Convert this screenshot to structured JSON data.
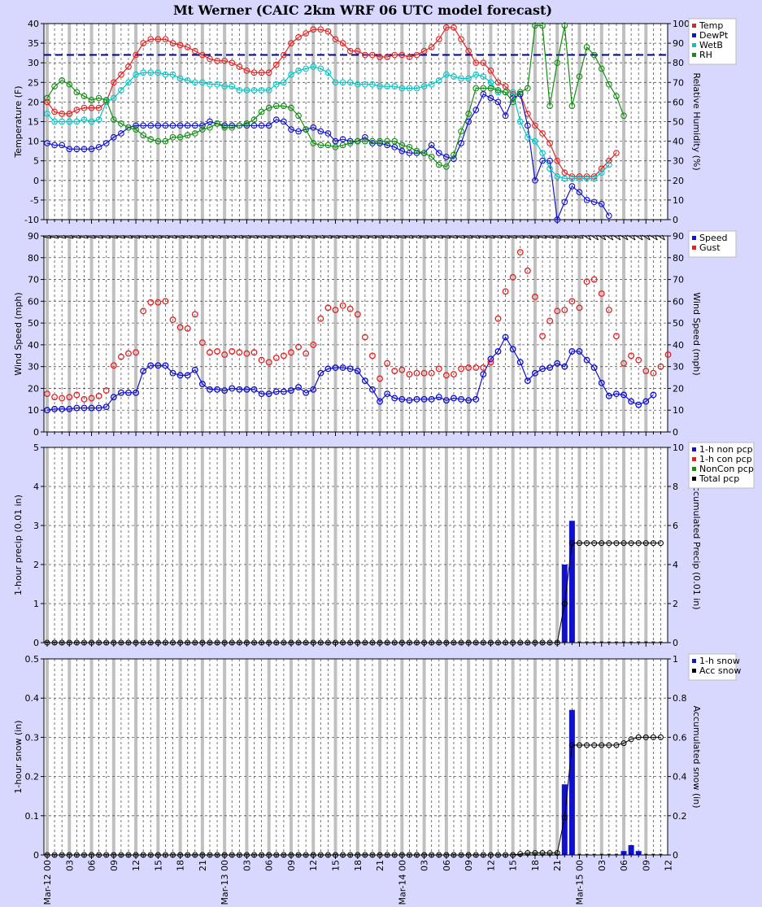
{
  "title": "Mt Werner (CAIC 2km WRF 06 UTC model forecast)",
  "colors": {
    "temp": "#e62020",
    "dewpt": "#1010d0",
    "wetb": "#00c8c8",
    "rh": "#109010",
    "total": "#000000",
    "bg": "#d8d8ff"
  },
  "chart_data": [
    {
      "type": "line",
      "ylabel": "Temperature (F)",
      "y2label": "Relative Humidity (%)",
      "ylim": [
        -10,
        40
      ],
      "y2lim": [
        0,
        100
      ],
      "ref_line": 32,
      "series": [
        {
          "name": "Temp",
          "axis": "left",
          "values": [
            20,
            17.5,
            17,
            17,
            18,
            18.5,
            18.5,
            18.5,
            20,
            25,
            27,
            29,
            32,
            35,
            36,
            36,
            36,
            35,
            34.5,
            34,
            33,
            32,
            31,
            30.5,
            30.5,
            30,
            29,
            28,
            27.5,
            27.5,
            27.5,
            29.5,
            32,
            35,
            36.5,
            37.5,
            38.5,
            38.5,
            38,
            36,
            35,
            33,
            33,
            32,
            32,
            31.5,
            31.5,
            32,
            32,
            31.5,
            32,
            33,
            34,
            36,
            39,
            39,
            36,
            33,
            30,
            30,
            28,
            25,
            24,
            22,
            22,
            17,
            14,
            12,
            9.5,
            5,
            2,
            1,
            1,
            1,
            1,
            3,
            5,
            7
          ]
        },
        {
          "name": "DewPt",
          "axis": "left",
          "values": [
            9.5,
            9,
            9,
            8,
            8,
            8,
            8,
            8.5,
            9.5,
            11,
            12,
            13.5,
            14,
            14,
            14,
            14,
            14,
            14,
            14,
            14,
            14,
            14,
            15,
            14.5,
            14,
            14,
            14,
            14,
            14,
            14,
            14,
            15.5,
            15,
            13,
            12.5,
            13,
            13.5,
            12.5,
            12,
            10,
            10.5,
            10,
            10,
            11,
            9.5,
            9.5,
            9,
            8.5,
            7.5,
            7,
            7,
            7,
            9,
            7,
            6,
            5.5,
            9.5,
            15,
            18,
            22,
            21,
            20,
            16.5,
            21,
            22,
            14,
            0,
            5,
            5,
            -10,
            -5.5,
            -1.5,
            -3,
            -5,
            -5.5,
            -6,
            -9
          ]
        },
        {
          "name": "WetB",
          "axis": "left",
          "values": [
            17,
            15,
            15,
            15,
            15,
            15.5,
            15,
            15.5,
            20,
            21,
            23,
            25,
            27,
            27.5,
            27.5,
            27.5,
            27,
            27,
            26,
            25.5,
            25,
            25,
            24.5,
            24.5,
            24,
            24,
            23,
            23,
            23,
            23,
            23,
            24.5,
            25,
            27,
            28,
            28.5,
            29,
            28.5,
            27.5,
            25,
            25,
            25,
            24.5,
            24.5,
            24.5,
            24,
            24,
            24,
            23.5,
            23.5,
            23.5,
            24,
            24.5,
            25.5,
            27,
            26.5,
            26,
            26,
            27,
            26.5,
            25,
            22.5,
            22.5,
            22.5,
            15,
            11,
            10,
            7,
            3,
            1,
            0.5,
            0.5,
            0.5,
            0.5,
            0.5,
            2,
            4
          ]
        },
        {
          "name": "RH",
          "axis": "right",
          "values": [
            62,
            68,
            71,
            69,
            65,
            63,
            61,
            62,
            61,
            51,
            49,
            47,
            46,
            43,
            41,
            40,
            40,
            42,
            42,
            43,
            44,
            46,
            47,
            49,
            47,
            47,
            48,
            49,
            51,
            55,
            57,
            58,
            58,
            57,
            53,
            46,
            39,
            38,
            38,
            37,
            38,
            39,
            40,
            40,
            40,
            40,
            40,
            40,
            38,
            37,
            35,
            34,
            32,
            28,
            27,
            33,
            45,
            54,
            67,
            67,
            67,
            66,
            65,
            60,
            65,
            67,
            99,
            99,
            58,
            80,
            99,
            58,
            73,
            88,
            84,
            77,
            69,
            63,
            53
          ]
        },
        {
          "name": "",
          "axis": "none",
          "values": []
        }
      ]
    },
    {
      "type": "scatter",
      "ylabel": "Wind Speed (mph)",
      "y2label": "Wind Speed (mph)",
      "ylim": [
        0,
        90
      ],
      "y2lim": [
        0,
        90
      ],
      "series": [
        {
          "name": "Speed",
          "values": [
            10,
            10.5,
            10.5,
            10.5,
            11,
            11,
            11,
            11,
            11.5,
            16,
            18,
            18,
            18,
            28,
            30.5,
            30.5,
            30.5,
            27,
            26,
            26,
            28.5,
            22,
            19.5,
            19.5,
            19,
            20,
            19.5,
            19.5,
            19.5,
            17.5,
            17.5,
            18.5,
            18.5,
            19,
            20.5,
            18,
            19.5,
            27,
            29,
            29.5,
            29.5,
            29,
            28,
            23.5,
            19.5,
            14,
            17.5,
            15.5,
            15,
            14.5,
            15,
            15,
            15,
            16,
            14.5,
            15.5,
            15,
            14.5,
            15,
            26.5,
            33.5,
            37,
            43.5,
            38,
            32,
            23.5,
            27,
            29,
            29.5,
            31.5,
            30,
            37,
            37,
            33,
            29.5,
            22.5,
            16.5,
            17.5,
            17,
            14,
            12.5,
            14,
            17
          ]
        },
        {
          "name": "Gust",
          "values": [
            17.5,
            16,
            15.5,
            16,
            17,
            15,
            15.5,
            16.5,
            19,
            30.5,
            34.5,
            36,
            36.5,
            55.5,
            59.5,
            59.5,
            60,
            51.5,
            48,
            47.5,
            54,
            41,
            36.5,
            37,
            35.5,
            37,
            36.5,
            36,
            36.5,
            33,
            32,
            34,
            35,
            36.5,
            39,
            36,
            40,
            52,
            57,
            56,
            58,
            56.5,
            54,
            43.5,
            35,
            24.5,
            31.5,
            28,
            28.5,
            26.5,
            27,
            27,
            27,
            29,
            26,
            26.5,
            29,
            29.5,
            29.5,
            29.5,
            32,
            52,
            64.5,
            71,
            82.5,
            74,
            62,
            44,
            51,
            55.5,
            56,
            60,
            57,
            69,
            70,
            63.5,
            56,
            44,
            31.5,
            35,
            33,
            28,
            27,
            30,
            35.5
          ]
        }
      ]
    },
    {
      "type": "bar",
      "ylabel": "1-hour precip (0.01 in)",
      "y2label": "Accumulated Precip (0.01 in)",
      "ylim": [
        0,
        5
      ],
      "y2lim": [
        0,
        10
      ],
      "series": [
        {
          "name": "1-h non pcp",
          "bars": [
            [
              70,
              2.0
            ],
            [
              71,
              3.12
            ]
          ]
        },
        {
          "name": "1-h con pcp",
          "bars": []
        },
        {
          "name": "NonCon pcp",
          "bars": []
        },
        {
          "name": "Total pcp",
          "acc": [
            [
              69,
              0
            ],
            [
              70,
              2.0
            ],
            [
              71,
              5.1
            ],
            [
              72,
              5.1
            ],
            [
              73,
              5.1
            ],
            [
              74,
              5.1
            ],
            [
              75,
              5.1
            ],
            [
              76,
              5.1
            ],
            [
              77,
              5.1
            ],
            [
              78,
              5.1
            ],
            [
              79,
              5.1
            ],
            [
              80,
              5.1
            ],
            [
              81,
              5.1
            ],
            [
              82,
              5.1
            ],
            [
              83,
              5.1
            ]
          ]
        }
      ]
    },
    {
      "type": "bar",
      "ylabel": "1-hour snow (in)",
      "y2label": "Accumulated snow (in)",
      "ylim": [
        0,
        0.5
      ],
      "y2lim": [
        0,
        1
      ],
      "series": [
        {
          "name": "1-h snow",
          "bars": [
            [
              70,
              0.18
            ],
            [
              71,
              0.37
            ],
            [
              78,
              0.01
            ],
            [
              79,
              0.025
            ],
            [
              80,
              0.01
            ]
          ]
        },
        {
          "name": "Acc snow",
          "acc": [
            [
              64,
              0.005
            ],
            [
              65,
              0.01
            ],
            [
              66,
              0.01
            ],
            [
              67,
              0.01
            ],
            [
              68,
              0.01
            ],
            [
              69,
              0.01
            ],
            [
              70,
              0.19
            ],
            [
              71,
              0.56
            ],
            [
              72,
              0.56
            ],
            [
              73,
              0.56
            ],
            [
              74,
              0.56
            ],
            [
              75,
              0.56
            ],
            [
              76,
              0.56
            ],
            [
              77,
              0.56
            ],
            [
              78,
              0.57
            ],
            [
              79,
              0.59
            ],
            [
              80,
              0.6
            ],
            [
              81,
              0.6
            ],
            [
              82,
              0.6
            ],
            [
              83,
              0.6
            ]
          ]
        }
      ]
    }
  ],
  "x_axis": {
    "first_hour_label": "Mar-12 00",
    "labels": [
      "Mar-12 00",
      "03",
      "06",
      "09",
      "12",
      "15",
      "18",
      "21",
      "Mar-13 00",
      "03",
      "06",
      "09",
      "12",
      "15",
      "18",
      "21",
      "Mar-14 00",
      "03",
      "06",
      "09",
      "12",
      "15",
      "18",
      "21",
      "Mar-15 00",
      "03",
      "06",
      "09",
      "12"
    ]
  },
  "legends": {
    "temp": [
      "Temp",
      "DewPt",
      "WetB",
      "RH"
    ],
    "wind": [
      "Speed",
      "Gust"
    ],
    "precip": [
      "1-h non pcp",
      "1-h con pcp",
      "NonCon pcp",
      "Total pcp"
    ],
    "snow": [
      "1-h snow",
      "Acc snow"
    ]
  }
}
